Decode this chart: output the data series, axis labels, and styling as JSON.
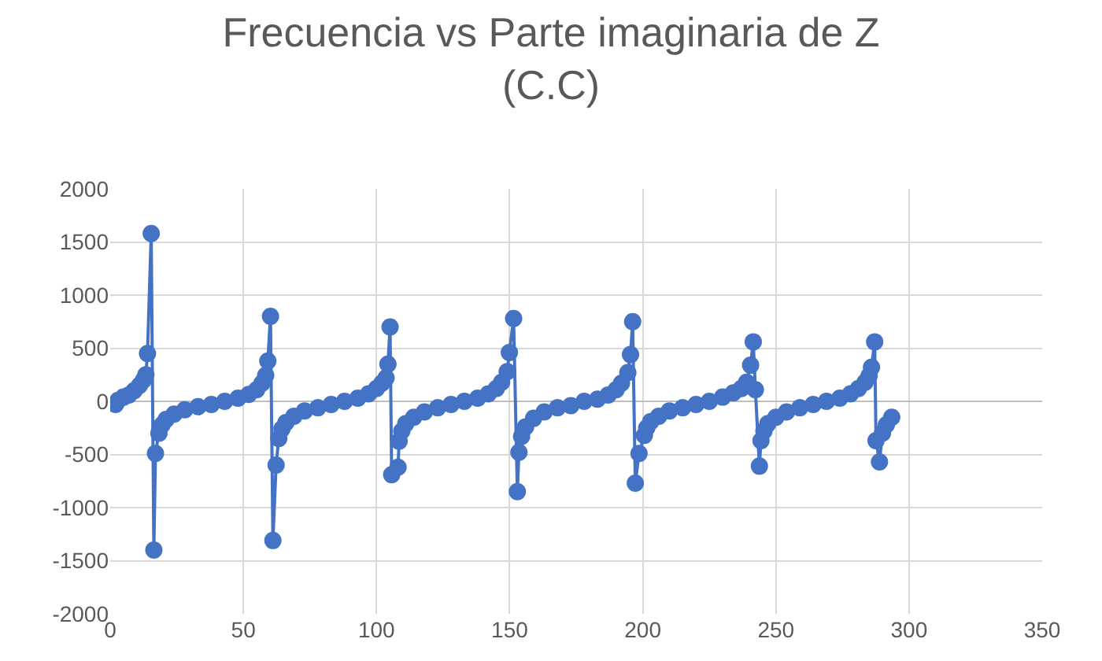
{
  "chart_data": {
    "type": "line",
    "title": "Frecuencia vs Parte imaginaria de Z\n(C.C)",
    "x": [
      2,
      3,
      5,
      7,
      9,
      11,
      12.5,
      13.4,
      14.0,
      15.4,
      16.4,
      17.0,
      18.3,
      19.5,
      21,
      24,
      28,
      33,
      38,
      43,
      48,
      52,
      55,
      57,
      58.4,
      59.2,
      60.2,
      61.1,
      62.3,
      63.3,
      64.5,
      66,
      69,
      73,
      78,
      83,
      88,
      93,
      97,
      100,
      102,
      103.6,
      104.3,
      105.1,
      105.7,
      108.1,
      108.5,
      109.5,
      111,
      114,
      118,
      123,
      128,
      133,
      138,
      142,
      145,
      147,
      149.1,
      149.9,
      151.5,
      152.9,
      153.5,
      154.5,
      156,
      159,
      163,
      168,
      173,
      178,
      183,
      187,
      190,
      192,
      194.4,
      195.4,
      196.2,
      197.2,
      198.6,
      200.6,
      201.5,
      203,
      206,
      210,
      215,
      220,
      225,
      230,
      234,
      237,
      239,
      240.5,
      241.5,
      242.3,
      243.8,
      244.4,
      245.5,
      247,
      250,
      254,
      259,
      264,
      269,
      274,
      278,
      281,
      283.5,
      285,
      285.9,
      287.1,
      287.6,
      288.9,
      290.0,
      291.5,
      293.5
    ],
    "series": [
      {
        "color": "#4472c4",
        "values": [
          -30,
          10,
          40,
          60,
          100,
          150,
          200,
          250,
          450,
          1580,
          -1400,
          -490,
          -300,
          -220,
          -170,
          -120,
          -80,
          -50,
          -30,
          0,
          30,
          65,
          110,
          170,
          245,
          380,
          800,
          -1310,
          -600,
          -350,
          -260,
          -200,
          -140,
          -90,
          -60,
          -30,
          0,
          30,
          70,
          120,
          170,
          220,
          350,
          700,
          -690,
          -620,
          -375,
          -280,
          -210,
          -150,
          -100,
          -60,
          -30,
          0,
          30,
          70,
          120,
          180,
          280,
          460,
          780,
          -850,
          -480,
          -330,
          -240,
          -160,
          -100,
          -60,
          -40,
          0,
          20,
          60,
          110,
          170,
          270,
          440,
          750,
          -770,
          -490,
          -320,
          -250,
          -190,
          -140,
          -90,
          -60,
          -30,
          0,
          40,
          80,
          120,
          180,
          340,
          560,
          110,
          -610,
          -370,
          -280,
          -210,
          -150,
          -100,
          -60,
          -30,
          0,
          30,
          70,
          120,
          180,
          240,
          320,
          560,
          -370,
          -570,
          -300,
          -220,
          -150
        ]
      }
    ],
    "xlim": [
      0,
      350
    ],
    "xticks": [
      0,
      50,
      100,
      150,
      200,
      250,
      300,
      350
    ],
    "ylim": [
      -2000,
      2000
    ],
    "yticks": [
      -2000,
      -1500,
      -1000,
      -500,
      0,
      500,
      1000,
      1500,
      2000
    ],
    "grid": true,
    "legend": false,
    "marker": "circle",
    "line_style": "solid"
  }
}
